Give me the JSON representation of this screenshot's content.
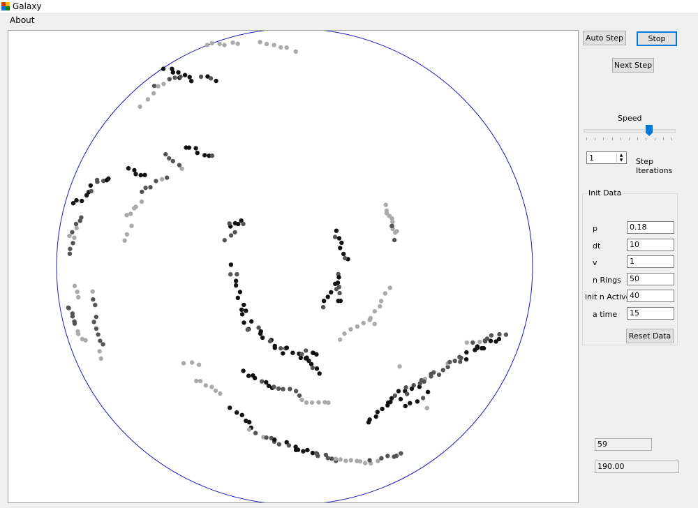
{
  "window": {
    "title": "Galaxy"
  },
  "menu": {
    "about": "About"
  },
  "controls": {
    "auto_step": "Auto Step",
    "stop": "Stop",
    "next_step": "Next Step",
    "speed_label": "Speed",
    "speed_fraction": 0.74,
    "step_iterations_value": "1",
    "step_label_line1": "Step",
    "step_label_line2": "Iterations"
  },
  "init_data": {
    "title": "Init Data",
    "fields": [
      {
        "label": "p",
        "value": "0.18"
      },
      {
        "label": "dt",
        "value": "10"
      },
      {
        "label": "v",
        "value": "1"
      },
      {
        "label": "n Rings",
        "value": "50"
      },
      {
        "label": "init n Active",
        "value": "40"
      },
      {
        "label": "a time",
        "value": "15"
      }
    ],
    "reset_button": "Reset Data"
  },
  "readouts": {
    "count": "59",
    "time": "190.00"
  },
  "colors": {
    "circle": "#1a1ab4",
    "star_dark": "#111111",
    "star_mid": "#555555",
    "star_light": "#aaaaaa"
  }
}
